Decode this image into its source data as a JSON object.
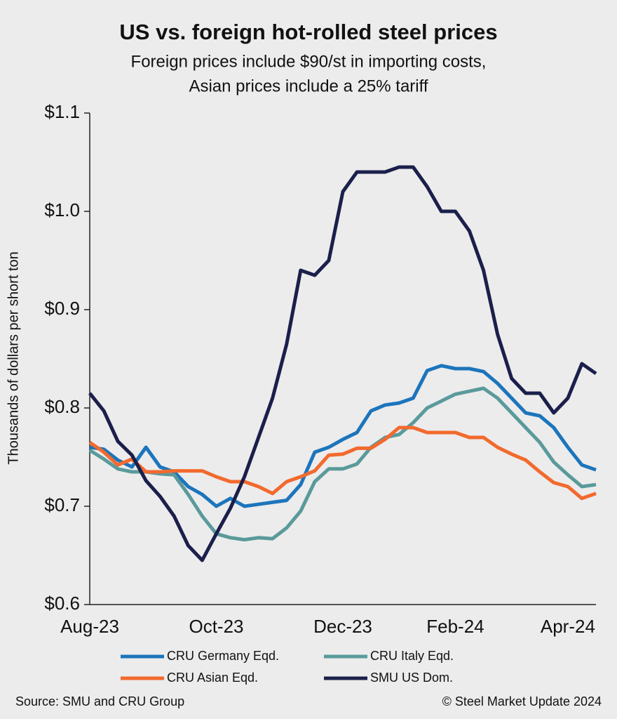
{
  "chart_data": {
    "type": "line",
    "title": "US vs. foreign hot-rolled steel prices",
    "subtitle": [
      "Foreign prices include $90/st in importing costs,",
      "Asian prices include a 25% tariff"
    ],
    "y_label": "Thousands of dollars per short ton",
    "categories": [
      "Aug-23",
      null,
      null,
      null,
      null,
      null,
      null,
      null,
      null,
      "Oct-23",
      null,
      null,
      null,
      null,
      null,
      null,
      null,
      null,
      "Dec-23",
      null,
      null,
      null,
      null,
      null,
      null,
      null,
      "Feb-24",
      null,
      null,
      null,
      null,
      null,
      null,
      null,
      "Apr-24",
      null,
      null
    ],
    "ylim": [
      0.6,
      1.1
    ],
    "yticks": [
      {
        "value": 0.6,
        "label": "$0.6"
      },
      {
        "value": 0.7,
        "label": "$0.7"
      },
      {
        "value": 0.8,
        "label": "$0.8"
      },
      {
        "value": 0.9,
        "label": "$0.9"
      },
      {
        "value": 1.0,
        "label": "$1.0"
      },
      {
        "value": 1.1,
        "label": "$1.1"
      }
    ],
    "grid": false,
    "series": [
      {
        "name": "CRU Germany Eqd.",
        "color": "#1c75bc",
        "values": [
          0.76,
          0.758,
          0.747,
          0.74,
          0.76,
          0.74,
          0.735,
          0.72,
          0.712,
          0.7,
          0.708,
          0.7,
          0.702,
          0.704,
          0.706,
          0.722,
          0.755,
          0.76,
          0.768,
          0.775,
          0.797,
          0.803,
          0.805,
          0.81,
          0.838,
          0.843,
          0.84,
          0.84,
          0.837,
          0.825,
          0.81,
          0.795,
          0.792,
          0.78,
          0.76,
          0.742,
          0.737
        ]
      },
      {
        "name": "CRU Italy Eqd.",
        "color": "#5a9a9b",
        "values": [
          0.757,
          0.748,
          0.738,
          0.735,
          0.735,
          0.733,
          0.732,
          0.712,
          0.69,
          0.672,
          0.668,
          0.666,
          0.668,
          0.667,
          0.678,
          0.695,
          0.725,
          0.738,
          0.738,
          0.743,
          0.76,
          0.77,
          0.773,
          0.785,
          0.8,
          0.807,
          0.814,
          0.817,
          0.82,
          0.81,
          0.795,
          0.78,
          0.765,
          0.745,
          0.732,
          0.72,
          0.722
        ]
      },
      {
        "name": "CRU Asian Eqd.",
        "color": "#f26a2e",
        "values": [
          0.765,
          0.755,
          0.742,
          0.748,
          0.735,
          0.735,
          0.736,
          0.736,
          0.736,
          0.73,
          0.725,
          0.725,
          0.72,
          0.713,
          0.725,
          0.73,
          0.736,
          0.752,
          0.753,
          0.759,
          0.759,
          0.768,
          0.78,
          0.78,
          0.775,
          0.775,
          0.775,
          0.77,
          0.77,
          0.76,
          0.753,
          0.747,
          0.735,
          0.724,
          0.72,
          0.708,
          0.713
        ]
      },
      {
        "name": "SMU US Dom.",
        "color": "#1b1f4b",
        "values": [
          0.815,
          0.797,
          0.766,
          0.752,
          0.726,
          0.71,
          0.69,
          0.66,
          0.645,
          0.672,
          0.698,
          0.73,
          0.77,
          0.81,
          0.865,
          0.94,
          0.935,
          0.95,
          1.02,
          1.04,
          1.04,
          1.04,
          1.045,
          1.045,
          1.025,
          1.0,
          1.0,
          0.98,
          0.94,
          0.875,
          0.83,
          0.815,
          0.815,
          0.795,
          0.81,
          0.845,
          0.835
        ]
      }
    ],
    "legend_position": "bottom",
    "source": "Source: SMU and CRU Group",
    "credit": "© Steel Market Update 2024"
  }
}
